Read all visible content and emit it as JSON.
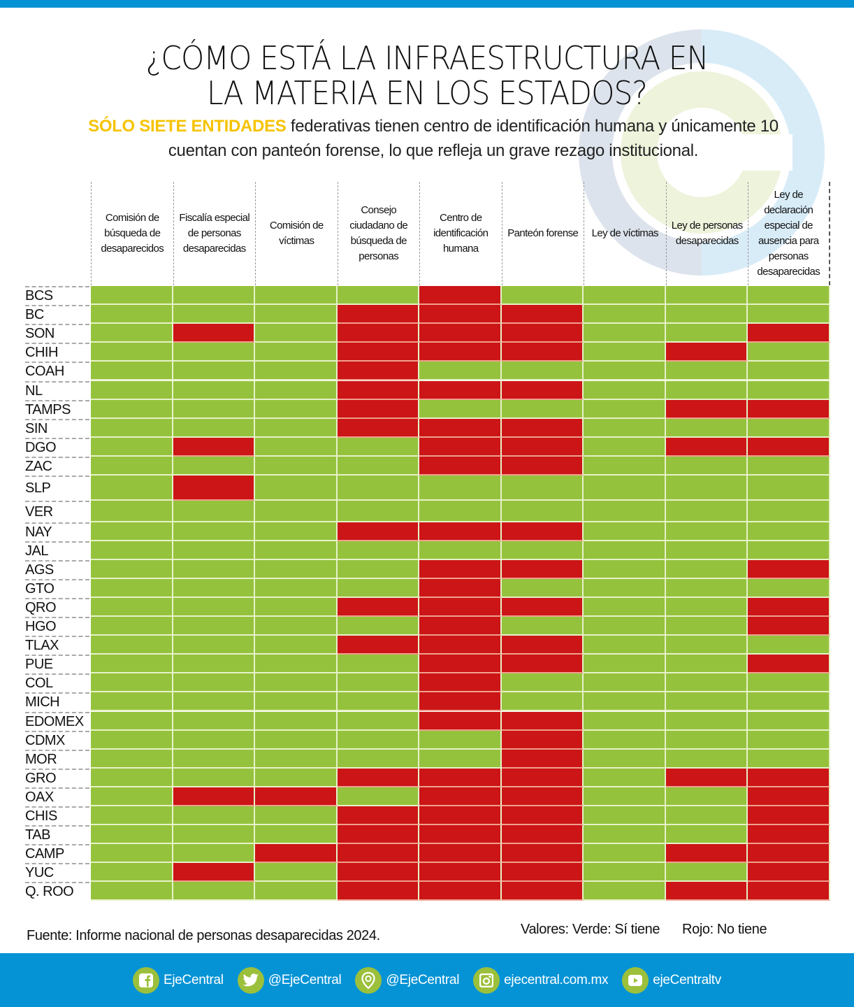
{
  "header": {
    "title_line1": "¿CÓMO ESTÁ LA INFRAESTRUCTURA EN",
    "title_line2": "LA MATERIA EN LOS ESTADOS?",
    "subtitle_highlight": "SÓLO SIETE ENTIDADES",
    "subtitle_line1_rest": " federativas tienen centro de identificación humana y únicamente 10",
    "subtitle_line2": "cuentan con panteón forense, lo que refleja un grave rezago institucional."
  },
  "colors": {
    "yes": "#95c23d",
    "no": "#cb1517",
    "brand_blue": "#0593d6",
    "highlight_yellow": "#f6c300",
    "icon_green": "#9cc03b"
  },
  "chart_data": {
    "type": "heatmap",
    "title": "¿CÓMO ESTÁ LA INFRAESTRUCTURA EN LA MATERIA EN LOS ESTADOS?",
    "columns": [
      "Comisión de búsqueda de desaparecidos",
      "Fiscalía especial de personas desaparecidas",
      "Comisión de víctimas",
      "Consejo ciudadano de búsqueda de personas",
      "Centro de identificación humana",
      "Panteón forense",
      "Ley de víctimas",
      "Ley de personas desaparecidas",
      "Ley de declaración especial de ausencia para personas desaparecidas"
    ],
    "value_legend": {
      "1": "Verde: Sí tiene",
      "0": "Rojo: No tiene"
    },
    "rows": [
      {
        "state": "BCS",
        "values": [
          1,
          1,
          1,
          1,
          0,
          1,
          1,
          1,
          1
        ]
      },
      {
        "state": "BC",
        "values": [
          1,
          1,
          1,
          0,
          0,
          0,
          1,
          1,
          1
        ]
      },
      {
        "state": "SON",
        "values": [
          1,
          0,
          1,
          0,
          0,
          0,
          1,
          1,
          0
        ]
      },
      {
        "state": "CHIH",
        "values": [
          1,
          1,
          1,
          0,
          0,
          0,
          1,
          0,
          1
        ]
      },
      {
        "state": "COAH",
        "values": [
          1,
          1,
          1,
          0,
          1,
          1,
          1,
          1,
          1
        ]
      },
      {
        "state": "NL",
        "values": [
          1,
          1,
          1,
          0,
          0,
          0,
          1,
          1,
          1
        ]
      },
      {
        "state": "TAMPS",
        "values": [
          1,
          1,
          1,
          0,
          1,
          1,
          1,
          0,
          0
        ]
      },
      {
        "state": "SIN",
        "values": [
          1,
          1,
          1,
          0,
          0,
          0,
          1,
          1,
          1
        ]
      },
      {
        "state": "DGO",
        "values": [
          1,
          0,
          1,
          1,
          0,
          0,
          1,
          0,
          0
        ]
      },
      {
        "state": "ZAC",
        "values": [
          1,
          1,
          1,
          1,
          0,
          0,
          1,
          1,
          1
        ]
      },
      {
        "state": "SLP",
        "values": [
          1,
          0,
          1,
          1,
          1,
          1,
          1,
          1,
          1
        ]
      },
      {
        "state": "VER",
        "values": [
          1,
          1,
          1,
          1,
          1,
          1,
          1,
          1,
          1
        ]
      },
      {
        "state": "NAY",
        "values": [
          1,
          1,
          1,
          0,
          0,
          0,
          1,
          1,
          1
        ]
      },
      {
        "state": "JAL",
        "values": [
          1,
          1,
          1,
          1,
          1,
          1,
          1,
          1,
          1
        ]
      },
      {
        "state": "AGS",
        "values": [
          1,
          1,
          1,
          1,
          0,
          0,
          1,
          1,
          0
        ]
      },
      {
        "state": "GTO",
        "values": [
          1,
          1,
          1,
          1,
          0,
          1,
          1,
          1,
          1
        ]
      },
      {
        "state": "QRO",
        "values": [
          1,
          1,
          1,
          0,
          0,
          0,
          1,
          1,
          0
        ]
      },
      {
        "state": "HGO",
        "values": [
          1,
          1,
          1,
          1,
          0,
          1,
          1,
          1,
          0
        ]
      },
      {
        "state": "TLAX",
        "values": [
          1,
          1,
          1,
          0,
          0,
          0,
          1,
          1,
          1
        ]
      },
      {
        "state": "PUE",
        "values": [
          1,
          1,
          1,
          1,
          0,
          0,
          1,
          1,
          0
        ]
      },
      {
        "state": "COL",
        "values": [
          1,
          1,
          1,
          1,
          0,
          1,
          1,
          1,
          1
        ]
      },
      {
        "state": "MICH",
        "values": [
          1,
          1,
          1,
          1,
          0,
          1,
          1,
          1,
          1
        ]
      },
      {
        "state": "EDOMEX",
        "values": [
          1,
          1,
          1,
          1,
          0,
          0,
          1,
          1,
          1
        ]
      },
      {
        "state": "CDMX",
        "values": [
          1,
          1,
          1,
          1,
          1,
          0,
          1,
          1,
          1
        ]
      },
      {
        "state": "MOR",
        "values": [
          1,
          1,
          1,
          1,
          1,
          0,
          1,
          1,
          1
        ]
      },
      {
        "state": "GRO",
        "values": [
          1,
          1,
          1,
          0,
          0,
          0,
          1,
          0,
          0
        ]
      },
      {
        "state": "OAX",
        "values": [
          1,
          0,
          0,
          1,
          0,
          0,
          1,
          1,
          0
        ]
      },
      {
        "state": "CHIS",
        "values": [
          1,
          1,
          1,
          0,
          0,
          0,
          1,
          1,
          0
        ]
      },
      {
        "state": "TAB",
        "values": [
          1,
          1,
          1,
          0,
          0,
          0,
          1,
          1,
          0
        ]
      },
      {
        "state": "CAMP",
        "values": [
          1,
          1,
          0,
          0,
          0,
          0,
          1,
          0,
          0
        ]
      },
      {
        "state": "YUC",
        "values": [
          1,
          0,
          1,
          0,
          0,
          0,
          1,
          1,
          0
        ]
      },
      {
        "state": "Q. ROO",
        "values": [
          1,
          1,
          1,
          0,
          0,
          0,
          1,
          0,
          0
        ]
      }
    ]
  },
  "footnote": {
    "source": "Fuente: Informe nacional de personas desaparecidas 2024.",
    "legend_yes": "Valores: Verde: Sí tiene",
    "legend_no": "Rojo: No tiene"
  },
  "footer": {
    "social": [
      {
        "icon": "facebook-icon",
        "label": "EjeCentral"
      },
      {
        "icon": "twitter-icon",
        "label": "@EjeCentral"
      },
      {
        "icon": "periscope-icon",
        "label": "@EjeCentral"
      },
      {
        "icon": "instagram-icon",
        "label": "ejecentral.com.mx"
      },
      {
        "icon": "youtube-icon",
        "label": "ejeCentraltv"
      }
    ]
  }
}
